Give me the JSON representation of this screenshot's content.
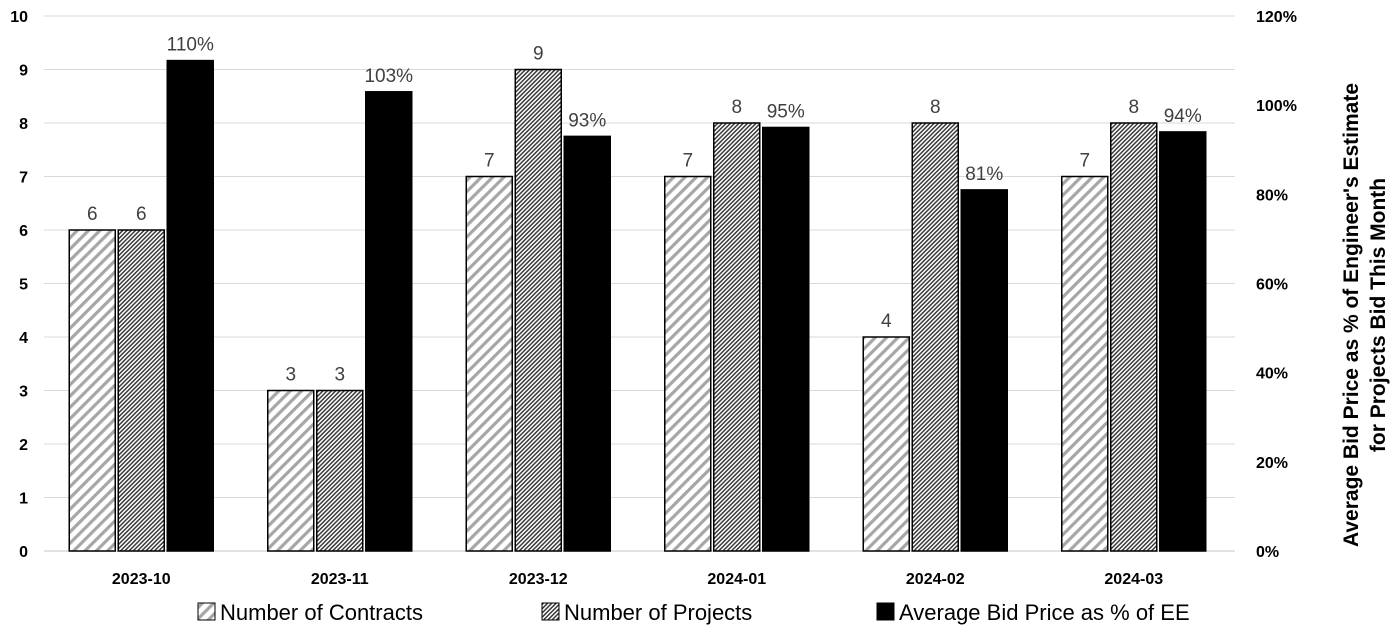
{
  "chart_data": {
    "type": "bar",
    "categories": [
      "2023-10",
      "2023-11",
      "2023-12",
      "2024-01",
      "2024-02",
      "2024-03"
    ],
    "series": [
      {
        "name": "Number of Contracts",
        "axis": "left",
        "pattern": "diagonal-hatch",
        "values": [
          6,
          3,
          7,
          7,
          4,
          7
        ],
        "labels": [
          "6",
          "3",
          "7",
          "7",
          "4",
          "7"
        ]
      },
      {
        "name": "Number of Projects",
        "axis": "left",
        "pattern": "dense-hatch",
        "values": [
          6,
          3,
          9,
          8,
          8,
          8
        ],
        "labels": [
          "6",
          "3",
          "9",
          "8",
          "8",
          "8"
        ]
      },
      {
        "name": "Average Bid Price as % of EE",
        "axis": "right",
        "pattern": "solid",
        "values": [
          110,
          103,
          93,
          95,
          81,
          94
        ],
        "labels": [
          "110%",
          "103%",
          "93%",
          "95%",
          "81%",
          "94%"
        ]
      }
    ],
    "y_left": {
      "min": 0,
      "max": 10,
      "ticks": [
        "0",
        "1",
        "2",
        "3",
        "4",
        "5",
        "6",
        "7",
        "8",
        "9",
        "10"
      ]
    },
    "y_right": {
      "min": 0,
      "max": 120,
      "ticks": [
        "0%",
        "20%",
        "40%",
        "60%",
        "80%",
        "100%",
        "120%"
      ],
      "label_line1": "Average Bid Price as % of Engineer's Estimate",
      "label_line2": "for Projects Bid This Month"
    },
    "grid": true,
    "legend_position": "bottom",
    "colors": {
      "bar_fill": "#000000",
      "grid": "#d9d9d9",
      "label_text": "#404040",
      "hatch_light": "#a6a6a6"
    }
  }
}
